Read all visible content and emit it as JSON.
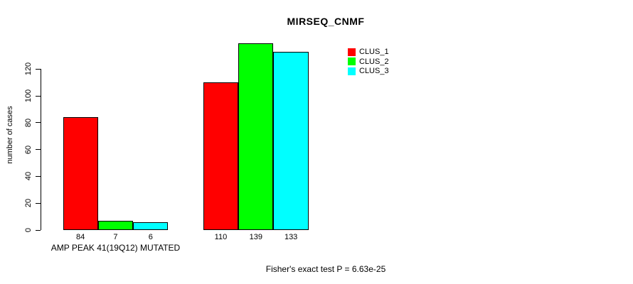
{
  "chart_data": {
    "type": "bar",
    "title": "MIRSEQ_CNMF",
    "ylabel": "number of cases",
    "xlabel": "",
    "categories": [
      "AMP PEAK 41(19Q12) MUTATED",
      ""
    ],
    "series": [
      {
        "name": "CLUS_1",
        "color": "#FF0000",
        "values": [
          84,
          110
        ]
      },
      {
        "name": "CLUS_2",
        "color": "#00FF00",
        "values": [
          7,
          139
        ]
      },
      {
        "name": "CLUS_3",
        "color": "#00FFFF",
        "values": [
          6,
          133
        ]
      }
    ],
    "bar_value_labels": [
      [
        84,
        7,
        6
      ],
      [
        110,
        139,
        133
      ]
    ],
    "yticks": [
      0,
      20,
      40,
      60,
      80,
      100,
      120
    ],
    "ylim": [
      0,
      140
    ],
    "grid": false,
    "legend_position": "top-right",
    "annotation": "Fisher's exact test P = 6.63e-25",
    "colors": {
      "background": "#FFFFFF",
      "axis": "#000000",
      "bar_border": "#000000"
    }
  }
}
